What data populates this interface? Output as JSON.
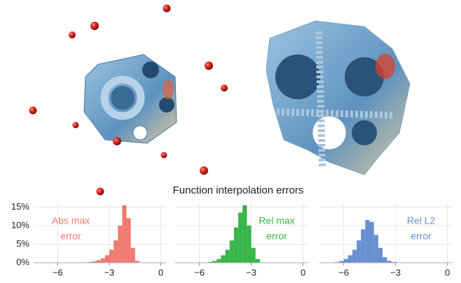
{
  "figure_title": "Function interpolation errors",
  "chart_data": [
    {
      "type": "histogram",
      "annotation": [
        "Abs max",
        "error"
      ],
      "color": "#f07b73",
      "bins": [
        -4.5,
        -4.25,
        -4,
        -3.75,
        -3.5,
        -3.25,
        -3,
        -2.75,
        -2.5,
        -2.25,
        -2,
        -1.75,
        -1.5,
        -1.25
      ],
      "values": [
        0.1,
        0.2,
        0.4,
        0.7,
        1.2,
        2,
        3.5,
        6,
        10,
        15.5,
        12,
        4,
        0.5
      ],
      "xlim": [
        -7.4,
        0.3
      ],
      "xticks": [
        {
          "value": -6,
          "label": "−6"
        },
        {
          "value": -3,
          "label": "−3"
        },
        0
      ],
      "ylim": [
        0,
        16
      ],
      "yticks": [
        {
          "value": 0,
          "label": "0%"
        },
        {
          "value": 5,
          "label": "5%"
        },
        {
          "value": 10,
          "label": "10%"
        },
        {
          "value": 15,
          "label": "15%"
        }
      ],
      "grid": true
    },
    {
      "type": "histogram",
      "annotation": [
        "Rel max",
        "error"
      ],
      "color": "#39b54a",
      "bins": [
        -5.5,
        -5.25,
        -5,
        -4.75,
        -4.5,
        -4.25,
        -4,
        -3.75,
        -3.5,
        -3.25,
        -3,
        -2.75,
        -2.5
      ],
      "values": [
        0.2,
        0.5,
        1,
        2,
        3.5,
        6,
        9.5,
        13.5,
        15.5,
        10,
        4,
        1
      ],
      "xlim": [
        -7.4,
        0.3
      ],
      "xticks": [
        {
          "value": -6,
          "label": "−6"
        },
        {
          "value": -3,
          "label": "−3"
        },
        0
      ],
      "ylim": [
        0,
        16
      ],
      "grid": true
    },
    {
      "type": "histogram",
      "annotation": [
        "Rel L2",
        "error"
      ],
      "color": "#6a8fd0",
      "bins": [
        -6.5,
        -6.25,
        -6,
        -5.75,
        -5.5,
        -5.25,
        -5,
        -4.75,
        -4.5,
        -4.25,
        -4,
        -3.75,
        -3.5,
        -3.25,
        -3
      ],
      "values": [
        0.2,
        0.5,
        1,
        2,
        3.5,
        6,
        9,
        11.5,
        11,
        7.5,
        4,
        1.5,
        0.5,
        0.2
      ],
      "xlim": [
        -7.4,
        0.3
      ],
      "xticks": [
        {
          "value": -6,
          "label": "−6"
        },
        {
          "value": -3,
          "label": "−3"
        },
        0
      ],
      "ylim": [
        0,
        16
      ],
      "grid": true
    }
  ]
}
